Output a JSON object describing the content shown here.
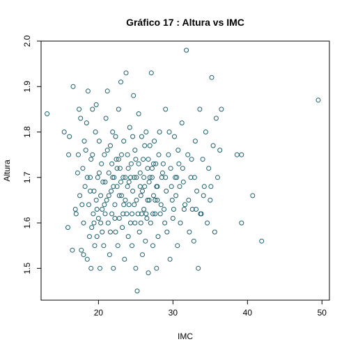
{
  "chart_data": {
    "type": "scatter",
    "title": "Gráfico 17 : Altura vs IMC",
    "xlabel": "IMC",
    "ylabel": "Altura",
    "xlim": [
      12.3,
      51.0
    ],
    "ylim": [
      1.43,
      2.0
    ],
    "xticks": [
      20,
      30,
      40,
      50
    ],
    "yticks": [
      1.5,
      1.6,
      1.7,
      1.8,
      1.9,
      2.0
    ],
    "grid": false,
    "legend": "none",
    "point_color": "#1b5e6b",
    "marker": "open-circle",
    "series": [
      {
        "points": [
          [
            13.1,
            1.84
          ],
          [
            15.4,
            1.8
          ],
          [
            15.9,
            1.59
          ],
          [
            16.0,
            1.75
          ],
          [
            16.1,
            1.79
          ],
          [
            16.5,
            1.54
          ],
          [
            16.6,
            1.9
          ],
          [
            16.9,
            1.63
          ],
          [
            17.0,
            1.62
          ],
          [
            17.2,
            1.71
          ],
          [
            17.4,
            1.85
          ],
          [
            17.5,
            1.66
          ],
          [
            17.6,
            1.83
          ],
          [
            17.7,
            1.54
          ],
          [
            17.8,
            1.64
          ],
          [
            17.9,
            1.72
          ],
          [
            18.0,
            1.53
          ],
          [
            18.0,
            1.6
          ],
          [
            18.2,
            1.68
          ],
          [
            18.3,
            1.76
          ],
          [
            18.4,
            1.82
          ],
          [
            18.5,
            1.52
          ],
          [
            18.6,
            1.89
          ],
          [
            18.7,
            1.64
          ],
          [
            18.8,
            1.57
          ],
          [
            18.9,
            1.7
          ],
          [
            19.0,
            1.5
          ],
          [
            19.0,
            1.74
          ],
          [
            19.1,
            1.59
          ],
          [
            19.2,
            1.85
          ],
          [
            19.3,
            1.62
          ],
          [
            19.4,
            1.67
          ],
          [
            19.5,
            1.55
          ],
          [
            19.6,
            1.8
          ],
          [
            19.7,
            1.65
          ],
          [
            19.8,
            1.57
          ],
          [
            19.9,
            1.7
          ],
          [
            20.0,
            1.61
          ],
          [
            20.1,
            1.78
          ],
          [
            20.2,
            1.5
          ],
          [
            20.3,
            1.66
          ],
          [
            20.4,
            1.73
          ],
          [
            20.5,
            1.58
          ],
          [
            20.6,
            1.69
          ],
          [
            20.7,
            1.55
          ],
          [
            20.8,
            1.75
          ],
          [
            20.9,
            1.62
          ],
          [
            21.0,
            1.83
          ],
          [
            21.1,
            1.65
          ],
          [
            21.2,
            1.89
          ],
          [
            21.3,
            1.6
          ],
          [
            21.4,
            1.71
          ],
          [
            21.5,
            1.53
          ],
          [
            21.6,
            1.77
          ],
          [
            21.7,
            1.67
          ],
          [
            21.8,
            1.62
          ],
          [
            21.9,
            1.8
          ],
          [
            22.0,
            1.5
          ],
          [
            22.1,
            1.7
          ],
          [
            22.2,
            1.64
          ],
          [
            22.3,
            1.58
          ],
          [
            22.4,
            1.74
          ],
          [
            22.5,
            1.68
          ],
          [
            22.6,
            1.55
          ],
          [
            22.7,
            1.85
          ],
          [
            22.8,
            1.61
          ],
          [
            22.9,
            1.72
          ],
          [
            23.0,
            1.91
          ],
          [
            23.1,
            1.66
          ],
          [
            23.2,
            1.59
          ],
          [
            23.3,
            1.7
          ],
          [
            23.4,
            1.78
          ],
          [
            23.5,
            1.52
          ],
          [
            23.6,
            1.65
          ],
          [
            23.7,
            1.93
          ],
          [
            23.8,
            1.62
          ],
          [
            23.9,
            1.75
          ],
          [
            24.0,
            1.57
          ],
          [
            24.1,
            1.69
          ],
          [
            24.2,
            1.81
          ],
          [
            24.3,
            1.6
          ],
          [
            24.4,
            1.73
          ],
          [
            24.5,
            1.55
          ],
          [
            24.6,
            1.67
          ],
          [
            24.7,
            1.88
          ],
          [
            24.8,
            1.64
          ],
          [
            24.9,
            1.76
          ],
          [
            25.0,
            1.5
          ],
          [
            25.1,
            1.7
          ],
          [
            25.2,
            1.45
          ],
          [
            25.3,
            1.62
          ],
          [
            25.4,
            1.84
          ],
          [
            25.5,
            1.58
          ],
          [
            25.6,
            1.71
          ],
          [
            25.7,
            1.66
          ],
          [
            25.8,
            1.79
          ],
          [
            25.9,
            1.53
          ],
          [
            26.0,
            1.74
          ],
          [
            26.1,
            1.63
          ],
          [
            26.2,
            1.68
          ],
          [
            26.3,
            1.56
          ],
          [
            26.4,
            1.8
          ],
          [
            26.5,
            1.61
          ],
          [
            26.6,
            1.72
          ],
          [
            26.7,
            1.49
          ],
          [
            26.8,
            1.65
          ],
          [
            26.9,
            1.77
          ],
          [
            27.0,
            1.6
          ],
          [
            27.1,
            1.93
          ],
          [
            27.2,
            1.7
          ],
          [
            27.3,
            1.55
          ],
          [
            27.4,
            1.66
          ],
          [
            27.5,
            1.78
          ],
          [
            27.6,
            1.62
          ],
          [
            27.7,
            1.73
          ],
          [
            27.8,
            1.5
          ],
          [
            27.9,
            1.68
          ],
          [
            28.0,
            1.57
          ],
          [
            28.2,
            1.8
          ],
          [
            28.4,
            1.64
          ],
          [
            28.6,
            1.71
          ],
          [
            28.8,
            1.63
          ],
          [
            29.0,
            1.85
          ],
          [
            29.2,
            1.58
          ],
          [
            29.4,
            1.75
          ],
          [
            29.6,
            1.52
          ],
          [
            29.8,
            1.68
          ],
          [
            30.0,
            1.61
          ],
          [
            30.2,
            1.79
          ],
          [
            30.4,
            1.66
          ],
          [
            30.6,
            1.55
          ],
          [
            30.8,
            1.73
          ],
          [
            31.0,
            1.6
          ],
          [
            31.2,
            1.82
          ],
          [
            31.4,
            1.69
          ],
          [
            31.6,
            1.64
          ],
          [
            31.8,
            1.98
          ],
          [
            32.0,
            1.75
          ],
          [
            32.2,
            1.58
          ],
          [
            32.4,
            1.7
          ],
          [
            32.6,
            1.63
          ],
          [
            32.8,
            1.56
          ],
          [
            33.0,
            1.78
          ],
          [
            33.2,
            1.67
          ],
          [
            33.4,
            1.5
          ],
          [
            33.6,
            1.85
          ],
          [
            33.8,
            1.62
          ],
          [
            34.0,
            1.74
          ],
          [
            34.2,
            1.68
          ],
          [
            34.4,
            1.8
          ],
          [
            34.6,
            1.6
          ],
          [
            34.8,
            1.72
          ],
          [
            35.0,
            1.65
          ],
          [
            35.2,
            1.92
          ],
          [
            35.4,
            1.77
          ],
          [
            35.6,
            1.58
          ],
          [
            35.8,
            1.83
          ],
          [
            36.0,
            1.7
          ],
          [
            36.3,
            1.76
          ],
          [
            36.5,
            1.85
          ],
          [
            38.6,
            1.75
          ],
          [
            39.2,
            1.75
          ],
          [
            39.2,
            1.6
          ],
          [
            40.7,
            1.66
          ],
          [
            41.9,
            1.56
          ],
          [
            49.5,
            1.87
          ],
          [
            18.1,
            1.78
          ],
          [
            18.9,
            1.67
          ],
          [
            19.4,
            1.6
          ],
          [
            20.1,
            1.71
          ],
          [
            20.8,
            1.64
          ],
          [
            21.2,
            1.76
          ],
          [
            21.9,
            1.7
          ],
          [
            22.3,
            1.79
          ],
          [
            22.8,
            1.66
          ],
          [
            23.3,
            1.62
          ],
          [
            23.9,
            1.68
          ],
          [
            24.3,
            1.7
          ],
          [
            24.9,
            1.6
          ],
          [
            25.4,
            1.73
          ],
          [
            25.9,
            1.67
          ],
          [
            26.4,
            1.62
          ],
          [
            26.9,
            1.7
          ],
          [
            27.4,
            1.73
          ],
          [
            27.9,
            1.65
          ],
          [
            28.5,
            1.7
          ],
          [
            29.1,
            1.67
          ],
          [
            29.7,
            1.72
          ],
          [
            30.3,
            1.7
          ],
          [
            30.9,
            1.68
          ],
          [
            17.3,
            1.75
          ],
          [
            19.7,
            1.86
          ],
          [
            20.5,
            1.63
          ],
          [
            21.6,
            1.58
          ],
          [
            22.0,
            1.68
          ],
          [
            22.5,
            1.72
          ],
          [
            23.1,
            1.75
          ],
          [
            23.6,
            1.7
          ],
          [
            24.1,
            1.64
          ],
          [
            24.6,
            1.79
          ],
          [
            25.1,
            1.65
          ],
          [
            25.7,
            1.6
          ],
          [
            26.2,
            1.77
          ],
          [
            26.8,
            1.69
          ],
          [
            27.3,
            1.62
          ],
          [
            28.1,
            1.75
          ],
          [
            28.9,
            1.6
          ],
          [
            29.5,
            1.8
          ],
          [
            30.1,
            1.63
          ],
          [
            30.7,
            1.76
          ],
          [
            31.3,
            1.72
          ],
          [
            32.1,
            1.65
          ],
          [
            32.9,
            1.7
          ],
          [
            33.7,
            1.62
          ],
          [
            18.5,
            1.7
          ],
          [
            19.2,
            1.75
          ],
          [
            20.3,
            1.6
          ],
          [
            21.4,
            1.66
          ],
          [
            22.2,
            1.61
          ],
          [
            22.7,
            1.74
          ],
          [
            23.4,
            1.64
          ],
          [
            24.0,
            1.72
          ],
          [
            24.5,
            1.62
          ],
          [
            25.0,
            1.74
          ],
          [
            25.6,
            1.68
          ],
          [
            26.1,
            1.7
          ],
          [
            26.6,
            1.65
          ],
          [
            27.2,
            1.72
          ],
          [
            27.8,
            1.68
          ],
          [
            28.3,
            1.62
          ],
          [
            29.0,
            1.7
          ],
          [
            29.9,
            1.65
          ],
          [
            31.5,
            1.63
          ],
          [
            32.5,
            1.74
          ],
          [
            34.1,
            1.66
          ],
          [
            19.8,
            1.63
          ],
          [
            20.9,
            1.69
          ],
          [
            21.8,
            1.73
          ],
          [
            23.0,
            1.69
          ],
          [
            24.8,
            1.7
          ],
          [
            25.8,
            1.62
          ],
          [
            26.7,
            1.74
          ],
          [
            27.6,
            1.65
          ],
          [
            28.7,
            1.73
          ],
          [
            30.5,
            1.7
          ],
          [
            33.1,
            1.63
          ],
          [
            35.1,
            1.68
          ]
        ]
      }
    ]
  }
}
